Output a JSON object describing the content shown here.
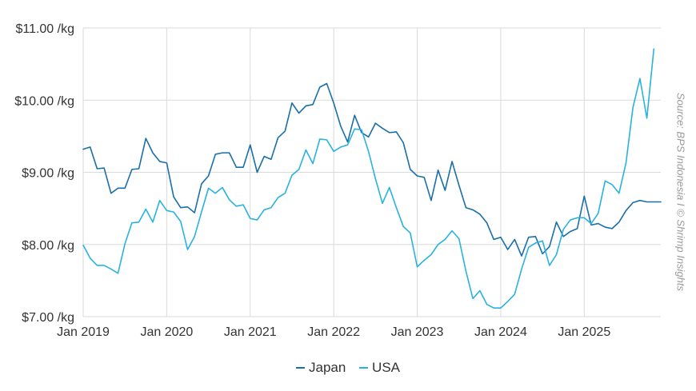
{
  "source": "Source: BPS Indonesia I © Shrimp Insights",
  "colors": {
    "japan": "#1a6fa8",
    "usa": "#29b2e0",
    "grid": "#dadada"
  },
  "chart_data": {
    "type": "line",
    "x_axis": {
      "start": "2019-01",
      "end": "2025-12",
      "tick_labels": [
        "Jan 2019",
        "Jan 2020",
        "Jan 2021",
        "Jan 2022",
        "Jan 2023",
        "Jan 2024",
        "Jan 2025"
      ]
    },
    "y_axis": {
      "ylim": [
        7,
        11
      ],
      "tick_values": [
        7,
        8,
        9,
        10,
        11
      ],
      "tick_labels": [
        "$7.00 /kg",
        "$8.00 /kg",
        "$9.00 /kg",
        "$10.00 /kg",
        "$11.00 /kg"
      ]
    },
    "grid": true,
    "legend_position": "bottom-center",
    "series": [
      {
        "name": "Japan",
        "color": "#1a6fa8",
        "start": "2019-01",
        "values": [
          9.32,
          9.35,
          9.05,
          9.06,
          8.71,
          8.78,
          8.78,
          9.04,
          9.05,
          9.47,
          9.27,
          9.15,
          9.13,
          8.66,
          8.51,
          8.52,
          8.44,
          8.84,
          8.95,
          9.25,
          9.27,
          9.27,
          9.07,
          9.07,
          9.38,
          9.0,
          9.22,
          9.18,
          9.48,
          9.57,
          9.96,
          9.82,
          9.92,
          9.94,
          10.18,
          10.23,
          9.96,
          9.64,
          9.42,
          9.79,
          9.55,
          9.49,
          9.68,
          9.61,
          9.55,
          9.56,
          9.41,
          9.04,
          8.95,
          8.93,
          8.61,
          9.03,
          8.75,
          9.15,
          8.82,
          8.51,
          8.48,
          8.42,
          8.3,
          8.07,
          8.1,
          7.93,
          8.07,
          7.84,
          8.1,
          8.11,
          7.87,
          7.97,
          8.31,
          8.11,
          8.18,
          8.22,
          8.67,
          8.27,
          8.29,
          8.24,
          8.22,
          8.31,
          8.47,
          8.58,
          8.61,
          8.59,
          8.59,
          8.59
        ]
      },
      {
        "name": "USA",
        "color": "#29b2e0",
        "start": "2019-01",
        "values": [
          7.99,
          7.81,
          7.71,
          7.71,
          7.66,
          7.6,
          8.01,
          8.3,
          8.31,
          8.49,
          8.31,
          8.61,
          8.47,
          8.45,
          8.32,
          7.93,
          8.11,
          8.45,
          8.78,
          8.71,
          8.79,
          8.62,
          8.53,
          8.55,
          8.36,
          8.34,
          8.48,
          8.51,
          8.65,
          8.71,
          8.96,
          9.04,
          9.31,
          9.12,
          9.46,
          9.45,
          9.29,
          9.35,
          9.38,
          9.6,
          9.59,
          9.29,
          8.91,
          8.57,
          8.79,
          8.51,
          8.25,
          8.16,
          7.69,
          7.78,
          7.86,
          8.0,
          8.07,
          8.19,
          8.08,
          7.63,
          7.25,
          7.36,
          7.17,
          7.12,
          7.12,
          7.21,
          7.31,
          7.66,
          7.96,
          8.02,
          8.05,
          7.71,
          7.86,
          8.21,
          8.34,
          8.37,
          8.37,
          8.29,
          8.43,
          8.88,
          8.83,
          8.71,
          9.13,
          9.9,
          10.3,
          9.75,
          10.71
        ]
      }
    ]
  }
}
